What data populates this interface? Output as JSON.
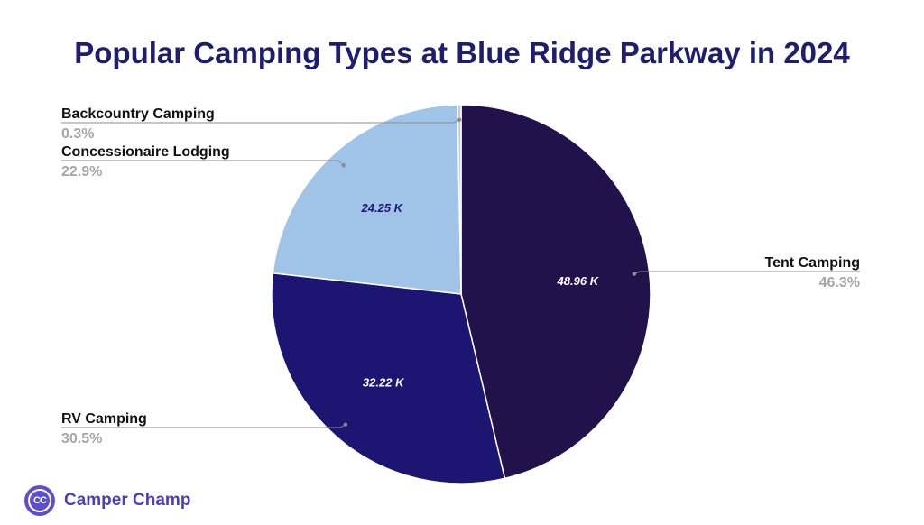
{
  "chart_data": {
    "type": "pie",
    "title": "Popular Camping Types at Blue Ridge Parkway in 2024",
    "slices": [
      {
        "name": "Tent Camping",
        "value": 48.96,
        "value_label": "48.96 K",
        "percent_label": "46.3%",
        "color": "#22124b",
        "label_color": "#ffffff"
      },
      {
        "name": "RV Camping",
        "value": 32.22,
        "value_label": "32.22 K",
        "percent_label": "30.5%",
        "color": "#1c1572",
        "label_color": "#ffffff"
      },
      {
        "name": "Concessionaire Lodging",
        "value": 24.25,
        "value_label": "24.25 K",
        "percent_label": "22.9%",
        "color": "#a0c4e8",
        "label_color": "#1c1572"
      },
      {
        "name": "Backcountry Camping",
        "value": 0.32,
        "value_label": "",
        "percent_label": "0.3%",
        "color": "#c9c9c9",
        "label_color": "#1c1572"
      }
    ],
    "start_angle": "12 o'clock",
    "direction": "clockwise",
    "legend": "callout labels"
  },
  "brand": {
    "logo_text": "CC",
    "name": "Camper Champ"
  }
}
